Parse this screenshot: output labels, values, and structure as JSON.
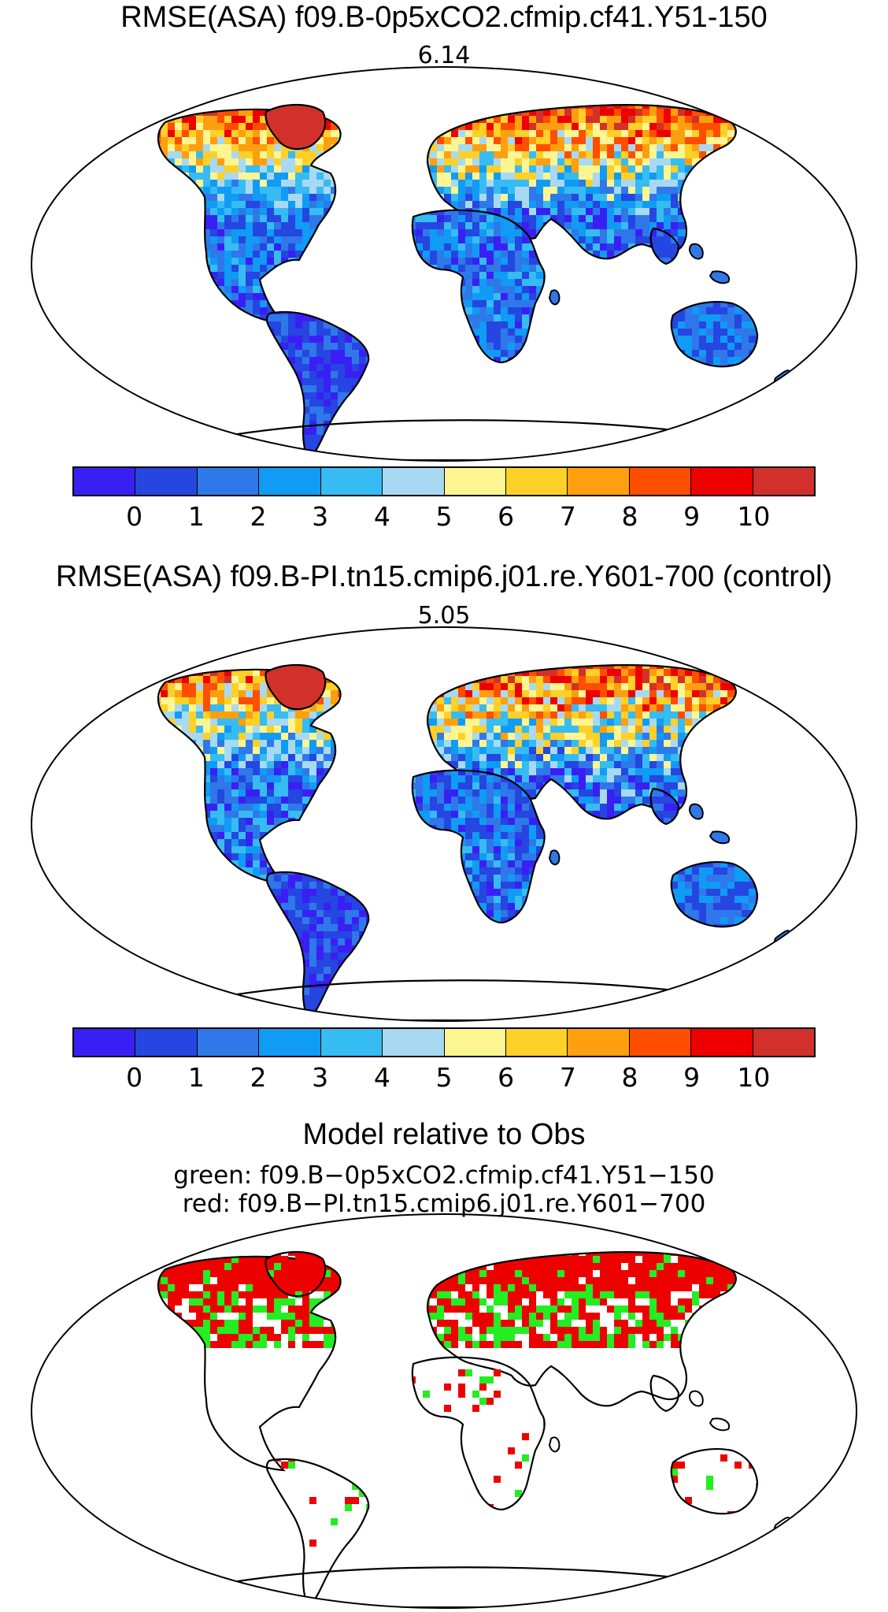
{
  "panels": [
    {
      "title": "RMSE(ASA) f09.B-0p5xCO2.cfmip.cf41.Y51-150",
      "value": "6.14"
    },
    {
      "title": "RMSE(ASA) f09.B-PI.tn15.cmip6.j01.re.Y601-700 (control)",
      "value": "5.05"
    }
  ],
  "comparison": {
    "title": "Model relative to Obs",
    "line1": "green: f09.B−0p5xCO2.cfmip.cf41.Y51−150",
    "line2": "red: f09.B−PI.tn15.cmip6.j01.re.Y601−700"
  },
  "colorbar": {
    "colors": [
      "#3a1ff5",
      "#2546e0",
      "#2f78ea",
      "#109bf5",
      "#36bcf2",
      "#a8d9f2",
      "#fdf592",
      "#fed028",
      "#fe9f0f",
      "#ff4e00",
      "#ef0000",
      "#d2312b"
    ],
    "tick_labels": [
      "0",
      "1",
      "2",
      "3",
      "4",
      "5",
      "6",
      "7",
      "8",
      "9",
      "10"
    ]
  },
  "colors": {
    "green": "#22ee22",
    "red": "#ee0000",
    "coast": "#000000"
  }
}
